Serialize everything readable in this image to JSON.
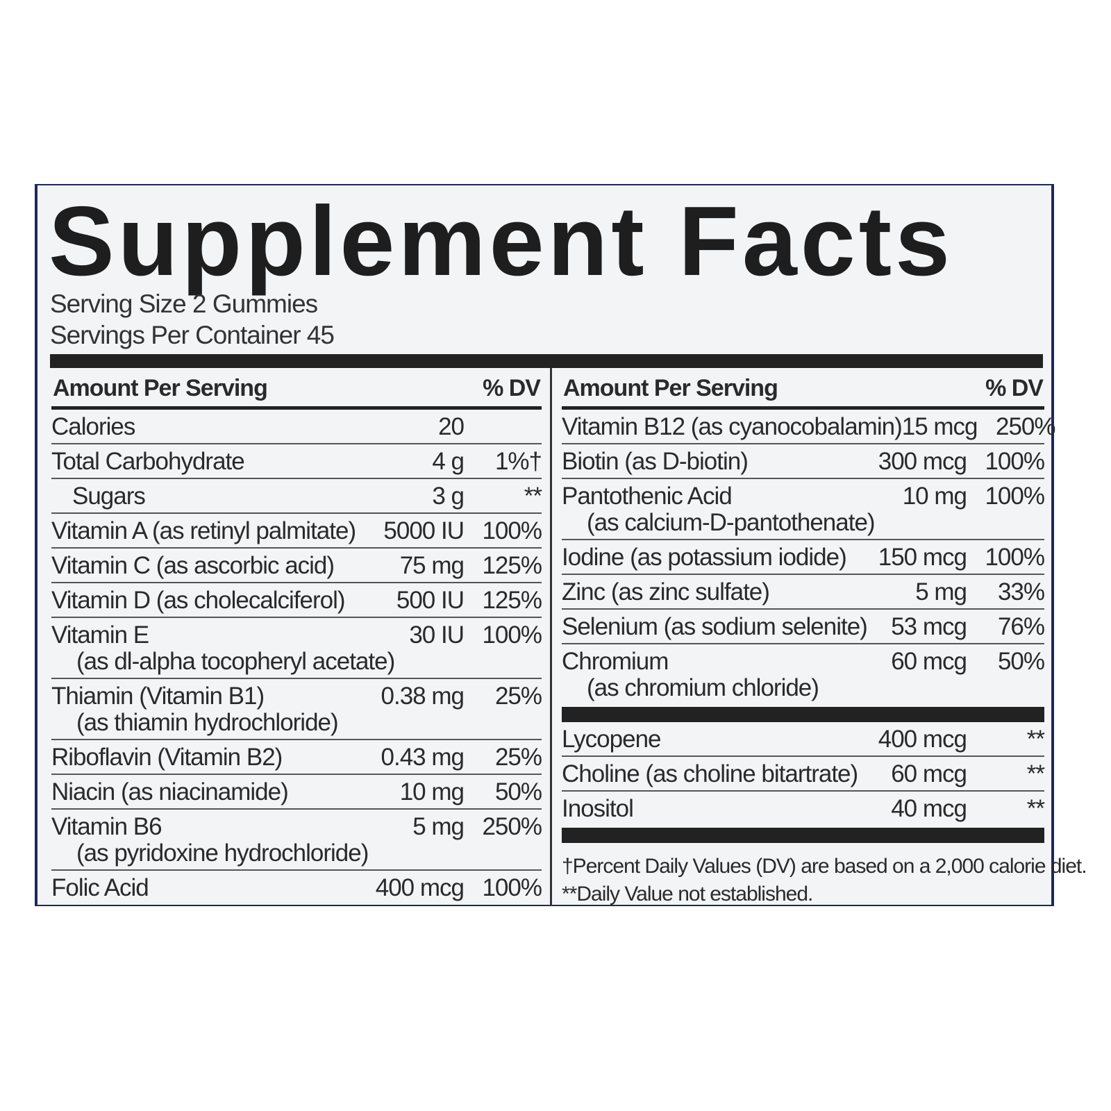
{
  "header": {
    "title": "Supplement Facts",
    "serving_size": "Serving Size 2 Gummies",
    "servings_per_container": "Servings Per Container 45"
  },
  "left": {
    "header": {
      "amount": "Amount Per Serving",
      "dv": "% DV"
    },
    "rows": [
      {
        "name": "Calories",
        "amount": "20"
      },
      {
        "name": "Total Carbohydrate",
        "amount": "4 g",
        "dv": "1%†",
        "subrows": [
          {
            "name": "Sugars",
            "amount": "3 g",
            "dv": "**"
          }
        ]
      },
      {
        "name": "Vitamin A (as retinyl palmitate)",
        "amount": "5000 IU",
        "dv": "100%"
      },
      {
        "name": "Vitamin C (as ascorbic acid)",
        "amount": "75 mg",
        "dv": "125%"
      },
      {
        "name": "Vitamin D (as cholecalciferol)",
        "amount": "500 IU",
        "dv": "125%"
      },
      {
        "name": "Vitamin E",
        "detail": "(as dl-alpha tocopheryl acetate)",
        "amount": "30 IU",
        "dv": "100%"
      },
      {
        "name": "Thiamin (Vitamin B1)",
        "detail": "(as thiamin hydrochloride)",
        "amount": "0.38 mg",
        "dv": "25%"
      },
      {
        "name": "Riboflavin (Vitamin B2)",
        "amount": "0.43 mg",
        "dv": "25%"
      },
      {
        "name": "Niacin (as niacinamide)",
        "amount": "10 mg",
        "dv": "50%"
      },
      {
        "name": "Vitamin B6",
        "detail": "(as pyridoxine hydrochloride)",
        "amount": "5 mg",
        "dv": "250%"
      },
      {
        "name": "Folic Acid",
        "amount": "400 mcg",
        "dv": "100%"
      }
    ]
  },
  "right": {
    "header": {
      "amount": "Amount Per Serving",
      "dv": "% DV"
    },
    "sections": [
      [
        {
          "name": "Vitamin B12 (as cyanocobalamin)",
          "amount": "15 mcg",
          "dv": "250%"
        },
        {
          "name": "Biotin (as D-biotin)",
          "amount": "300 mcg",
          "dv": "100%"
        },
        {
          "name": "Pantothenic Acid",
          "detail": "(as calcium-D-pantothenate)",
          "amount": "10 mg",
          "dv": "100%"
        },
        {
          "name": "Iodine (as potassium iodide)",
          "amount": "150 mcg",
          "dv": "100%"
        },
        {
          "name": "Zinc (as zinc sulfate)",
          "amount": "5 mg",
          "dv": "33%"
        },
        {
          "name": "Selenium (as sodium selenite)",
          "amount": "53 mcg",
          "dv": "76%"
        },
        {
          "name": "Chromium",
          "detail": "(as chromium chloride)",
          "amount": "60 mcg",
          "dv": "50%"
        }
      ],
      [
        {
          "name": "Lycopene",
          "amount": "400 mcg",
          "dv": "**"
        },
        {
          "name": "Choline (as choline bitartrate)",
          "amount": "60 mcg",
          "dv": "**"
        },
        {
          "name": "Inositol",
          "amount": "40 mcg",
          "dv": "**"
        }
      ]
    ],
    "footnotes": [
      "†Percent Daily Values (DV) are based on a 2,000 calorie diet.",
      "**Daily Value not established."
    ]
  }
}
